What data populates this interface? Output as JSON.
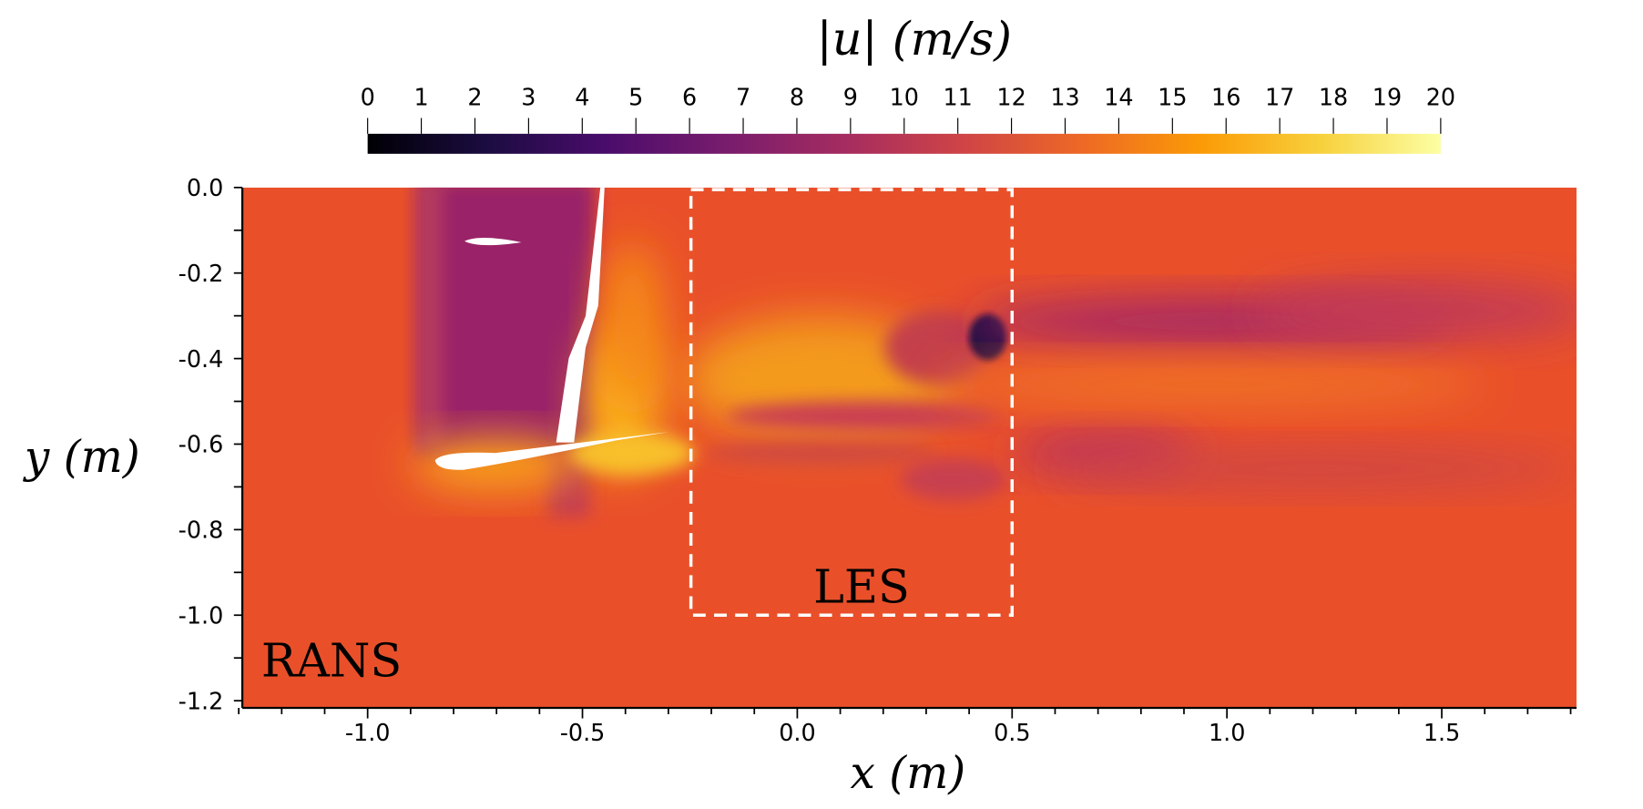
{
  "chart_data": {
    "type": "heatmap",
    "title": "|u| (m/s)",
    "xlabel": "x (m)",
    "ylabel": "y (m)",
    "xlim": [
      -1.29,
      1.81
    ],
    "ylim": [
      -1.217,
      0.0
    ],
    "xticks": [
      -1.0,
      -0.5,
      0.0,
      0.5,
      1.0,
      1.5
    ],
    "xtick_labels": [
      "-1.0",
      "-0.5",
      "0.0",
      "0.5",
      "1.0",
      "1.5"
    ],
    "yticks": [
      0.0,
      -0.2,
      -0.4,
      -0.6,
      -0.8,
      -1.0,
      -1.2
    ],
    "ytick_labels": [
      "0.0",
      "-0.2",
      "-0.4",
      "-0.6",
      "-0.8",
      "-1.0",
      "-1.2"
    ],
    "colorbar": {
      "range": [
        0,
        20
      ],
      "ticks": [
        0,
        1,
        2,
        3,
        4,
        5,
        6,
        7,
        8,
        9,
        10,
        11,
        12,
        13,
        14,
        15,
        16,
        17,
        18,
        19,
        20
      ],
      "tick_labels": [
        "0",
        "1",
        "2",
        "3",
        "4",
        "5",
        "6",
        "7",
        "8",
        "9",
        "10",
        "11",
        "12",
        "13",
        "14",
        "15",
        "16",
        "17",
        "18",
        "19",
        "20"
      ],
      "colormap": "inferno",
      "stops": [
        "#000004",
        "#1b0c41",
        "#4a0c6b",
        "#781c6d",
        "#a52c60",
        "#cf4446",
        "#ed6925",
        "#fb9b06",
        "#f7d13d",
        "#fcffa4"
      ]
    },
    "regions": [
      {
        "label": "LES",
        "x": [
          -0.25,
          0.5
        ],
        "y": [
          -1.0,
          0.0
        ]
      },
      {
        "label": "RANS"
      }
    ],
    "background_color": "#e9502a"
  }
}
